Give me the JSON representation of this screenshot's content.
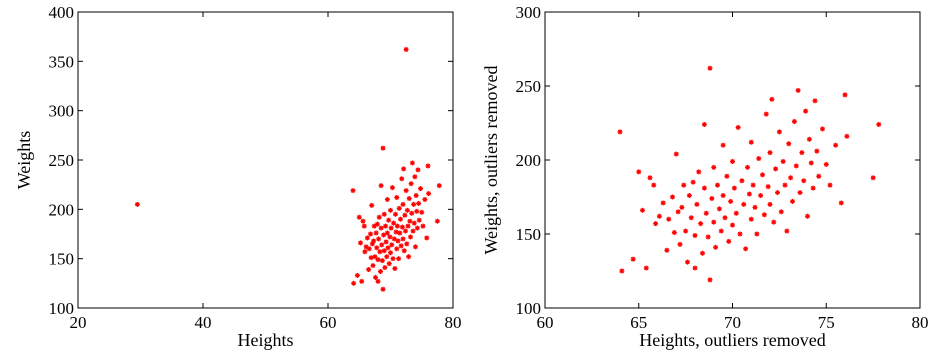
{
  "chart_data": [
    {
      "type": "scatter",
      "title": "",
      "xlabel": "Heights",
      "ylabel": "Weights",
      "xlim": [
        20,
        80
      ],
      "ylim": [
        100,
        400
      ],
      "xticks": [
        "20",
        "40",
        "60",
        "80"
      ],
      "yticks": [
        "100",
        "150",
        "200",
        "250",
        "300",
        "350",
        "400"
      ],
      "grid": false,
      "marker_color": "#ff0000",
      "series": [
        {
          "points": [
            [
              29.5,
              205
            ],
            [
              72.5,
              362
            ],
            [
              68.8,
              262
            ],
            [
              64.0,
              219
            ],
            [
              64.1,
              125
            ],
            [
              64.7,
              133
            ],
            [
              65.0,
              192
            ],
            [
              65.2,
              166
            ],
            [
              65.4,
              127
            ],
            [
              65.6,
              188
            ],
            [
              65.8,
              183
            ],
            [
              65.9,
              157
            ],
            [
              66.1,
              162
            ],
            [
              66.3,
              171
            ],
            [
              66.5,
              139
            ],
            [
              66.6,
              160
            ],
            [
              66.8,
              175
            ],
            [
              66.9,
              151
            ],
            [
              67.0,
              204
            ],
            [
              67.1,
              165
            ],
            [
              67.2,
              143
            ],
            [
              67.3,
              168
            ],
            [
              67.4,
              183
            ],
            [
              67.5,
              152
            ],
            [
              67.6,
              131
            ],
            [
              67.7,
              176
            ],
            [
              67.8,
              161
            ],
            [
              67.9,
              185
            ],
            [
              68.0,
              127
            ],
            [
              68.0,
              149
            ],
            [
              68.1,
              170
            ],
            [
              68.2,
              192
            ],
            [
              68.3,
              157
            ],
            [
              68.4,
              137
            ],
            [
              68.5,
              181
            ],
            [
              68.5,
              224
            ],
            [
              68.6,
              164
            ],
            [
              68.7,
              148
            ],
            [
              68.8,
              119
            ],
            [
              68.9,
              174
            ],
            [
              69.0,
              158
            ],
            [
              69.0,
              195
            ],
            [
              69.1,
              141
            ],
            [
              69.2,
              183
            ],
            [
              69.3,
              167
            ],
            [
              69.4,
              152
            ],
            [
              69.5,
              176
            ],
            [
              69.5,
              210
            ],
            [
              69.6,
              161
            ],
            [
              69.7,
              189
            ],
            [
              69.8,
              145
            ],
            [
              69.9,
              172
            ],
            [
              70.0,
              156
            ],
            [
              70.0,
              199
            ],
            [
              70.1,
              181
            ],
            [
              70.2,
              164
            ],
            [
              70.3,
              222
            ],
            [
              70.4,
              150
            ],
            [
              70.5,
              186
            ],
            [
              70.6,
              170
            ],
            [
              70.7,
              140
            ],
            [
              70.8,
              195
            ],
            [
              70.9,
              177
            ],
            [
              71.0,
              160
            ],
            [
              71.0,
              212
            ],
            [
              71.1,
              183
            ],
            [
              71.2,
              168
            ],
            [
              71.3,
              150
            ],
            [
              71.4,
              201
            ],
            [
              71.5,
              176
            ],
            [
              71.6,
              190
            ],
            [
              71.7,
              163
            ],
            [
              71.8,
              231
            ],
            [
              71.9,
              182
            ],
            [
              72.0,
              170
            ],
            [
              72.0,
              205
            ],
            [
              72.1,
              241
            ],
            [
              72.2,
              158
            ],
            [
              72.3,
              194
            ],
            [
              72.4,
              178
            ],
            [
              72.5,
              219
            ],
            [
              72.6,
              165
            ],
            [
              72.7,
              199
            ],
            [
              72.8,
              183
            ],
            [
              72.9,
              152
            ],
            [
              73.0,
              211
            ],
            [
              73.1,
              188
            ],
            [
              73.2,
              172
            ],
            [
              73.3,
              226
            ],
            [
              73.4,
              196
            ],
            [
              73.5,
              247
            ],
            [
              73.6,
              178
            ],
            [
              73.7,
              205
            ],
            [
              73.8,
              186
            ],
            [
              73.9,
              233
            ],
            [
              74.0,
              162
            ],
            [
              74.1,
              214
            ],
            [
              74.2,
              198
            ],
            [
              74.3,
              181
            ],
            [
              74.4,
              240
            ],
            [
              74.5,
              206
            ],
            [
              74.6,
              189
            ],
            [
              74.8,
              221
            ],
            [
              75.0,
              197
            ],
            [
              75.2,
              183
            ],
            [
              75.5,
              210
            ],
            [
              75.8,
              171
            ],
            [
              76.0,
              244
            ],
            [
              76.1,
              216
            ],
            [
              77.5,
              188
            ],
            [
              77.8,
              224
            ]
          ]
        }
      ]
    },
    {
      "type": "scatter",
      "title": "",
      "xlabel": "Heights, outliers removed",
      "ylabel": "Weights, outliers removed",
      "xlim": [
        60,
        80
      ],
      "ylim": [
        100,
        300
      ],
      "xticks": [
        "60",
        "65",
        "70",
        "75",
        "80"
      ],
      "yticks": [
        "100",
        "150",
        "200",
        "250",
        "300"
      ],
      "grid": false,
      "marker_color": "#ff0000",
      "series": [
        {
          "points": [
            [
              68.8,
              262
            ],
            [
              64.0,
              219
            ],
            [
              64.1,
              125
            ],
            [
              64.7,
              133
            ],
            [
              65.0,
              192
            ],
            [
              65.2,
              166
            ],
            [
              65.4,
              127
            ],
            [
              65.6,
              188
            ],
            [
              65.8,
              183
            ],
            [
              65.9,
              157
            ],
            [
              66.1,
              162
            ],
            [
              66.3,
              171
            ],
            [
              66.5,
              139
            ],
            [
              66.6,
              160
            ],
            [
              66.8,
              175
            ],
            [
              66.9,
              151
            ],
            [
              67.0,
              204
            ],
            [
              67.1,
              165
            ],
            [
              67.2,
              143
            ],
            [
              67.3,
              168
            ],
            [
              67.4,
              183
            ],
            [
              67.5,
              152
            ],
            [
              67.6,
              131
            ],
            [
              67.7,
              176
            ],
            [
              67.8,
              161
            ],
            [
              67.9,
              185
            ],
            [
              68.0,
              127
            ],
            [
              68.0,
              149
            ],
            [
              68.1,
              170
            ],
            [
              68.2,
              192
            ],
            [
              68.3,
              157
            ],
            [
              68.4,
              137
            ],
            [
              68.5,
              181
            ],
            [
              68.5,
              224
            ],
            [
              68.6,
              164
            ],
            [
              68.7,
              148
            ],
            [
              68.8,
              119
            ],
            [
              68.9,
              174
            ],
            [
              69.0,
              158
            ],
            [
              69.0,
              195
            ],
            [
              69.1,
              141
            ],
            [
              69.2,
              183
            ],
            [
              69.3,
              167
            ],
            [
              69.4,
              152
            ],
            [
              69.5,
              176
            ],
            [
              69.5,
              210
            ],
            [
              69.6,
              161
            ],
            [
              69.7,
              189
            ],
            [
              69.8,
              145
            ],
            [
              69.9,
              172
            ],
            [
              70.0,
              156
            ],
            [
              70.0,
              199
            ],
            [
              70.1,
              181
            ],
            [
              70.2,
              164
            ],
            [
              70.3,
              222
            ],
            [
              70.4,
              150
            ],
            [
              70.5,
              186
            ],
            [
              70.6,
              170
            ],
            [
              70.7,
              140
            ],
            [
              70.8,
              195
            ],
            [
              70.9,
              177
            ],
            [
              71.0,
              160
            ],
            [
              71.0,
              212
            ],
            [
              71.1,
              183
            ],
            [
              71.2,
              168
            ],
            [
              71.3,
              150
            ],
            [
              71.4,
              201
            ],
            [
              71.5,
              176
            ],
            [
              71.6,
              190
            ],
            [
              71.7,
              163
            ],
            [
              71.8,
              231
            ],
            [
              71.9,
              182
            ],
            [
              72.0,
              170
            ],
            [
              72.0,
              205
            ],
            [
              72.1,
              241
            ],
            [
              72.2,
              158
            ],
            [
              72.3,
              194
            ],
            [
              72.4,
              178
            ],
            [
              72.5,
              219
            ],
            [
              72.6,
              165
            ],
            [
              72.7,
              199
            ],
            [
              72.8,
              183
            ],
            [
              72.9,
              152
            ],
            [
              73.0,
              211
            ],
            [
              73.1,
              188
            ],
            [
              73.2,
              172
            ],
            [
              73.3,
              226
            ],
            [
              73.4,
              196
            ],
            [
              73.5,
              247
            ],
            [
              73.6,
              178
            ],
            [
              73.7,
              205
            ],
            [
              73.8,
              186
            ],
            [
              73.9,
              233
            ],
            [
              74.0,
              162
            ],
            [
              74.1,
              214
            ],
            [
              74.2,
              198
            ],
            [
              74.3,
              181
            ],
            [
              74.4,
              240
            ],
            [
              74.5,
              206
            ],
            [
              74.6,
              189
            ],
            [
              74.8,
              221
            ],
            [
              75.0,
              197
            ],
            [
              75.2,
              183
            ],
            [
              75.5,
              210
            ],
            [
              75.8,
              171
            ],
            [
              76.0,
              244
            ],
            [
              76.1,
              216
            ],
            [
              77.5,
              188
            ],
            [
              77.8,
              224
            ]
          ]
        }
      ]
    }
  ]
}
